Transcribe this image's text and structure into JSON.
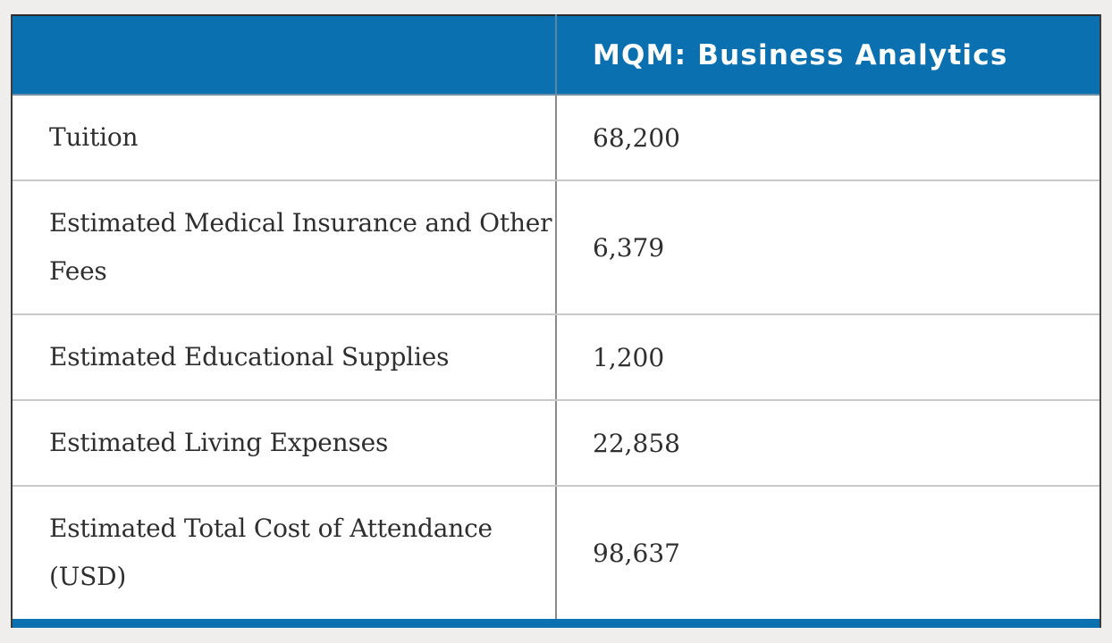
{
  "table": {
    "header": {
      "left": "",
      "right": "MQM: Business Analytics"
    },
    "rows": [
      {
        "label": "Tuition",
        "value": "68,200"
      },
      {
        "label": "Estimated Medical Insurance and Other Fees",
        "value": "6,379"
      },
      {
        "label": "Estimated Educational Supplies",
        "value": "1,200"
      },
      {
        "label": "Estimated Living Expenses",
        "value": "22,858"
      },
      {
        "label": "Estimated Total Cost of Attendance (USD)",
        "value": "98,637"
      }
    ]
  },
  "colors": {
    "header_bg": "#0a70b0",
    "header_text": "#ffffff",
    "body_text": "#2f2f2f",
    "page_bg": "#f0eeec"
  }
}
